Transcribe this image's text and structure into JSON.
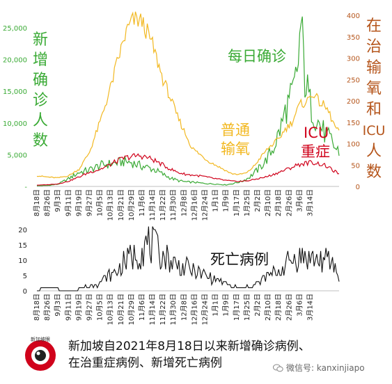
{
  "chart_data": [
    {
      "type": "line",
      "title": "",
      "x_dates": [
        "8月18日",
        "8月26日",
        "9月3日",
        "9月11日",
        "9月19日",
        "9月27日",
        "10月5日",
        "10月13日",
        "10月21日",
        "10月29日",
        "11月6日",
        "11月14日",
        "11月22日",
        "11月30日",
        "12月8日",
        "12月16日",
        "12月24日",
        "1月1日",
        "1月9日",
        "1月17日",
        "1月25日",
        "2月2日",
        "2月10日",
        "2月18日",
        "2月26日",
        "3月6日",
        "3月14日"
      ],
      "left_axis": {
        "label": "新增确诊人数",
        "ticks": [
          "25,000",
          "20,000",
          "15,000",
          "10,000",
          "5,000",
          "-"
        ],
        "range": [
          0,
          25000
        ],
        "color": "#3aaa35"
      },
      "right_axis": {
        "label": "在治输氧和ICU人数",
        "ticks": [
          "400",
          "350",
          "300",
          "250",
          "200",
          "150",
          "100",
          "50",
          "0"
        ],
        "range": [
          0,
          400
        ],
        "color": "#b5551b"
      },
      "series": [
        {
          "name": "每日确诊",
          "axis": "left",
          "color": "#3aaa35",
          "anchors": [
            [
              0,
              100
            ],
            [
              8,
              150
            ],
            [
              16,
              350
            ],
            [
              24,
              1200
            ],
            [
              32,
              2200
            ],
            [
              40,
              2600
            ],
            [
              48,
              3300
            ],
            [
              54,
              3500
            ],
            [
              60,
              3700
            ],
            [
              66,
              3900
            ],
            [
              72,
              3800
            ],
            [
              78,
              3300
            ],
            [
              84,
              3000
            ],
            [
              90,
              2600
            ],
            [
              96,
              1900
            ],
            [
              102,
              1300
            ],
            [
              108,
              900
            ],
            [
              114,
              700
            ],
            [
              120,
              650
            ],
            [
              126,
              500
            ],
            [
              132,
              420
            ],
            [
              138,
              350
            ],
            [
              144,
              250
            ],
            [
              150,
              500
            ],
            [
              156,
              800
            ],
            [
              162,
              1500
            ],
            [
              168,
              2600
            ],
            [
              174,
              4000
            ],
            [
              180,
              6000
            ],
            [
              186,
              9500
            ],
            [
              190,
              12500
            ],
            [
              194,
              14000
            ],
            [
              198,
              17500
            ],
            [
              201,
              25500
            ],
            [
              204,
              17000
            ],
            [
              208,
              13000
            ],
            [
              212,
              11000
            ],
            [
              216,
              9500
            ],
            [
              220,
              8000
            ],
            [
              224,
              7200
            ],
            [
              227,
              6000
            ],
            [
              230,
              5500
            ]
          ]
        },
        {
          "name": "普通输氧",
          "axis": "right",
          "color": "#f2b821",
          "anchors": [
            [
              0,
              25
            ],
            [
              8,
              22
            ],
            [
              16,
              20
            ],
            [
              24,
              25
            ],
            [
              32,
              40
            ],
            [
              40,
              80
            ],
            [
              48,
              150
            ],
            [
              56,
              230
            ],
            [
              62,
              300
            ],
            [
              68,
              360
            ],
            [
              72,
              385
            ],
            [
              76,
              390
            ],
            [
              80,
              385
            ],
            [
              84,
              360
            ],
            [
              88,
              330
            ],
            [
              92,
              290
            ],
            [
              96,
              250
            ],
            [
              100,
              220
            ],
            [
              106,
              170
            ],
            [
              112,
              130
            ],
            [
              118,
              90
            ],
            [
              124,
              75
            ],
            [
              130,
              60
            ],
            [
              136,
              50
            ],
            [
              142,
              40
            ],
            [
              148,
              30
            ],
            [
              154,
              28
            ],
            [
              160,
              32
            ],
            [
              166,
              50
            ],
            [
              172,
              75
            ],
            [
              178,
              95
            ],
            [
              184,
              110
            ],
            [
              188,
              130
            ],
            [
              194,
              150
            ],
            [
              200,
              190
            ],
            [
              206,
              200
            ],
            [
              210,
              220
            ],
            [
              214,
              200
            ],
            [
              218,
              190
            ],
            [
              222,
              175
            ],
            [
              226,
              145
            ],
            [
              230,
              125
            ]
          ]
        },
        {
          "name": "ICU重症",
          "axis": "right",
          "color": "#d0021b",
          "anchors": [
            [
              0,
              3
            ],
            [
              8,
              4
            ],
            [
              16,
              6
            ],
            [
              24,
              12
            ],
            [
              32,
              22
            ],
            [
              40,
              33
            ],
            [
              48,
              40
            ],
            [
              54,
              48
            ],
            [
              60,
              58
            ],
            [
              66,
              66
            ],
            [
              72,
              70
            ],
            [
              78,
              72
            ],
            [
              84,
              68
            ],
            [
              90,
              60
            ],
            [
              96,
              50
            ],
            [
              102,
              40
            ],
            [
              108,
              32
            ],
            [
              114,
              28
            ],
            [
              120,
              26
            ],
            [
              126,
              24
            ],
            [
              132,
              20
            ],
            [
              138,
              17
            ],
            [
              144,
              14
            ],
            [
              150,
              12
            ],
            [
              156,
              12
            ],
            [
              162,
              14
            ],
            [
              168,
              18
            ],
            [
              174,
              22
            ],
            [
              180,
              28
            ],
            [
              186,
              35
            ],
            [
              192,
              42
            ],
            [
              198,
              50
            ],
            [
              204,
              54
            ],
            [
              208,
              56
            ],
            [
              212,
              55
            ],
            [
              216,
              52
            ],
            [
              220,
              48
            ],
            [
              224,
              40
            ],
            [
              228,
              33
            ],
            [
              230,
              30
            ]
          ]
        }
      ],
      "annotations": [
        {
          "text": "每日确诊",
          "color": "#3aaa35"
        },
        {
          "text": "普通输氧",
          "color": "#f2b821"
        },
        {
          "text": "ICU",
          "color": "#d0021b"
        },
        {
          "text": "重症",
          "color": "#d0021b"
        }
      ]
    },
    {
      "type": "line",
      "title": "",
      "x_dates": [
        "8月18日",
        "8月26日",
        "9月3日",
        "9月11日",
        "9月19日",
        "9月27日",
        "10月5日",
        "10月13日",
        "10月21日",
        "10月29日",
        "11月6日",
        "11月14日",
        "11月22日",
        "11月30日",
        "12月8日",
        "12月16日",
        "12月24日",
        "1月1日",
        "1月9日",
        "1月17日",
        "1月25日",
        "2月2日",
        "2月10日",
        "2月18日",
        "2月26日",
        "3月6日",
        "3月14日"
      ],
      "y_axis": {
        "ticks": [
          "20",
          "15",
          "10",
          "5",
          "0"
        ],
        "range": [
          0,
          20
        ]
      },
      "series": [
        {
          "name": "死亡病例",
          "color": "#111111",
          "anchors": [
            [
              0,
              0
            ],
            [
              6,
              1
            ],
            [
              12,
              1
            ],
            [
              20,
              0
            ],
            [
              28,
              0
            ],
            [
              36,
              1
            ],
            [
              44,
              2
            ],
            [
              52,
              4
            ],
            [
              60,
              6
            ],
            [
              66,
              9
            ],
            [
              72,
              11
            ],
            [
              78,
              13
            ],
            [
              84,
              15
            ],
            [
              88,
              15
            ],
            [
              92,
              13
            ],
            [
              98,
              11
            ],
            [
              104,
              9
            ],
            [
              110,
              8
            ],
            [
              116,
              7
            ],
            [
              122,
              6
            ],
            [
              128,
              5
            ],
            [
              134,
              4
            ],
            [
              140,
              3
            ],
            [
              146,
              2
            ],
            [
              152,
              1
            ],
            [
              158,
              1
            ],
            [
              164,
              2
            ],
            [
              170,
              3
            ],
            [
              176,
              5
            ],
            [
              182,
              6
            ],
            [
              188,
              8
            ],
            [
              194,
              10
            ],
            [
              200,
              11
            ],
            [
              206,
              11
            ],
            [
              212,
              10
            ],
            [
              218,
              10
            ],
            [
              224,
              9
            ],
            [
              228,
              7
            ],
            [
              230,
              3
            ]
          ]
        }
      ],
      "annotations": [
        {
          "text": "死亡病例",
          "color": "#111111"
        }
      ]
    }
  ],
  "footer": {
    "caption_line1": "新加坡自2021年8月18日以来新增确诊病例、",
    "caption_line2": "在治重症病例、新增死亡病例",
    "logo_text": "新加坡眼",
    "wechat_label": "微信号: kanxinjiapo"
  },
  "colors": {
    "cases": "#3aaa35",
    "oxygen": "#f2b821",
    "icu": "#d0021b",
    "right_axis": "#b5551b",
    "deaths": "#111111"
  },
  "icons": [
    "wechat-icon",
    "logo-eye-icon"
  ]
}
